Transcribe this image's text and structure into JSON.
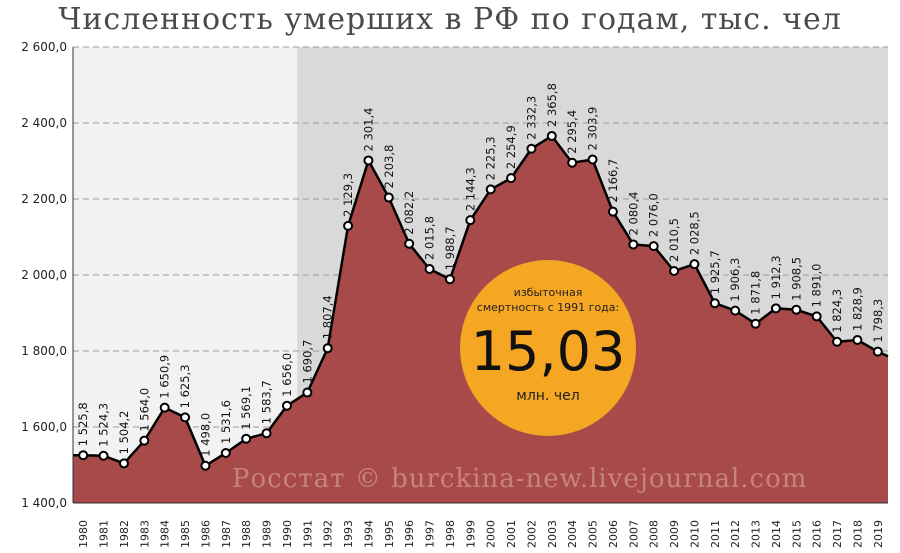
{
  "title": "Численность умерших в РФ по годам, тыс. чел",
  "credit": "Росстат © burckina-new.livejournal.com",
  "callout": {
    "caption_line1": "избыточная",
    "caption_line2": "смертность с 1991 года:",
    "value": "15,03",
    "unit": "млн. чел"
  },
  "colors": {
    "area_fill": "#a84a4a",
    "background_early": "#f2f2f2",
    "background_late": "#d9d9d9",
    "line": "#000000",
    "badge": "#f5a623"
  },
  "chart_data": {
    "type": "area",
    "ylim": [
      1400,
      2600
    ],
    "yticks": [
      "1 400,0",
      "1 600,0",
      "1 800,0",
      "2 000,0",
      "2 200,0",
      "2 400,0",
      "2 600,0"
    ],
    "shaded_from_year": "1991",
    "grid": "horizontal dashed",
    "x": [
      "1980",
      "1981",
      "1982",
      "1983",
      "1984",
      "1985",
      "1986",
      "1987",
      "1988",
      "1989",
      "1990",
      "1991",
      "1992",
      "1993",
      "1994",
      "1995",
      "1996",
      "1997",
      "1998",
      "1999",
      "2000",
      "2001",
      "2002",
      "2003",
      "2004",
      "2005",
      "2006",
      "2007",
      "2008",
      "2009",
      "2010",
      "2011",
      "2012",
      "2013",
      "2014",
      "2015",
      "2016",
      "2017",
      "2018",
      "2019"
    ],
    "values": [
      1525.8,
      1524.3,
      1504.2,
      1564.0,
      1650.9,
      1625.3,
      1498.0,
      1531.6,
      1569.1,
      1583.7,
      1656.0,
      1690.7,
      1807.4,
      2129.3,
      2301.4,
      2203.8,
      2082.2,
      2015.8,
      1988.7,
      2144.3,
      2225.3,
      2254.9,
      2332.3,
      2365.8,
      2295.4,
      2303.9,
      2166.7,
      2080.4,
      2076.0,
      2010.5,
      2028.5,
      1925.7,
      1906.3,
      1871.8,
      1912.3,
      1908.5,
      1891.0,
      1824.3,
      1828.9,
      1798.3
    ],
    "labels": [
      "1 525,8",
      "1 524,3",
      "1 504,2",
      "1 564,0",
      "1 650,9",
      "1 625,3",
      "1 498,0",
      "1 531,6",
      "1 569,1",
      "1 583,7",
      "1 656,0",
      "1 690,7",
      "1 807,4",
      "2 129,3",
      "2 301,4",
      "2 203,8",
      "2 082,2",
      "2 015,8",
      "1 988,7",
      "2 144,3",
      "2 225,3",
      "2 254,9",
      "2 332,3",
      "2 365,8",
      "2 295,4",
      "2 303,9",
      "2 166,7",
      "2 080,4",
      "2 076,0",
      "2 010,5",
      "2 028,5",
      "1 925,7",
      "1 906,3",
      "1 871,8",
      "1 912,3",
      "1 908,5",
      "1 891,0",
      "1 824,3",
      "1 828,9",
      "1 798,3"
    ]
  }
}
